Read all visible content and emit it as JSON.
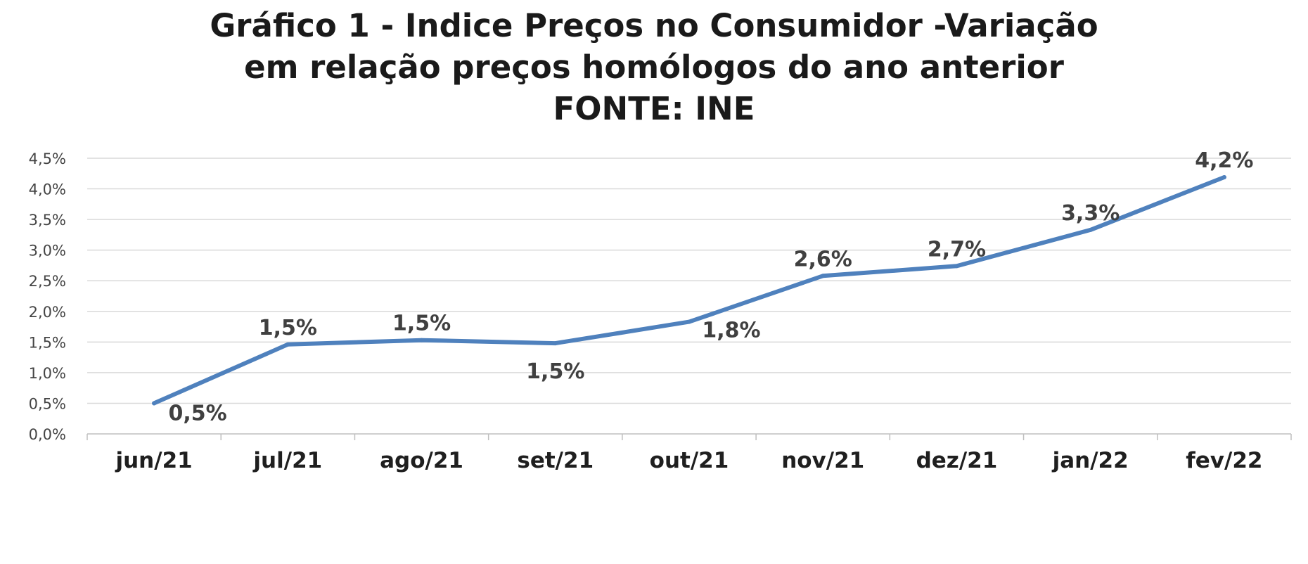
{
  "chart_data": {
    "type": "line",
    "title_lines": [
      "Gráfico 1 - Indice Preços no Consumidor  -Variação",
      "em relação preços homólogos  do ano anterior",
      "FONTE: INE"
    ],
    "categories": [
      "jun/21",
      "jul/21",
      "ago/21",
      "set/21",
      "out/21",
      "nov/21",
      "dez/21",
      "jan/22",
      "fev/22"
    ],
    "series": [
      {
        "values": [
          0.5,
          1.46,
          1.53,
          1.48,
          1.83,
          2.58,
          2.74,
          3.33,
          4.19
        ],
        "data_labels": [
          "0,5%",
          "1,5%",
          "1,5%",
          "1,5%",
          "1,8%",
          "2,6%",
          "2,7%",
          "3,3%",
          "4,2%"
        ]
      }
    ],
    "y_ticks": [
      "0,0%",
      "0,5%",
      "1,0%",
      "1,5%",
      "2,0%",
      "2,5%",
      "3,0%",
      "3,5%",
      "4,0%",
      "4,5%"
    ],
    "ylim": [
      0,
      4.5
    ],
    "xlabel": "",
    "ylabel": "",
    "grid": true,
    "legend": "none",
    "colors": {
      "line": "#4f81bd",
      "grid": "#d9d9d9",
      "axis": "#bfbfbf"
    }
  }
}
